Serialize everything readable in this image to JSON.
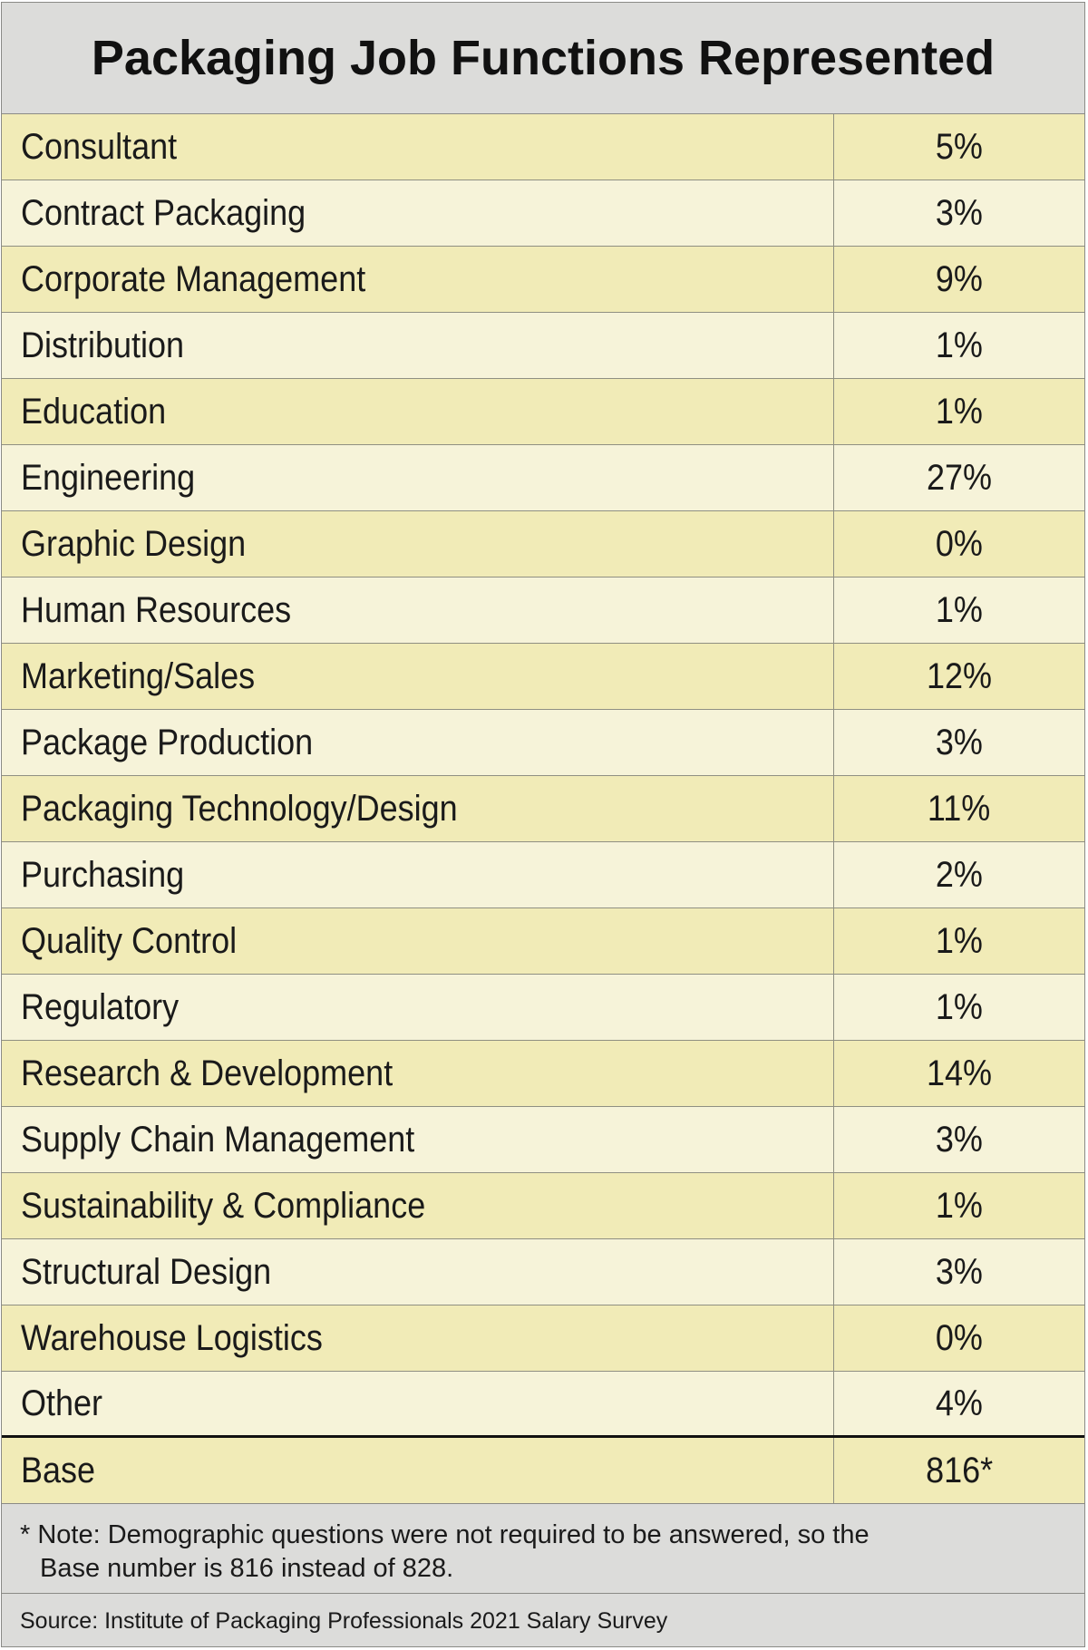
{
  "chart_data": {
    "type": "table",
    "title": "Packaging Job Functions Represented",
    "rows": [
      {
        "label": "Consultant",
        "value": "5%"
      },
      {
        "label": "Contract Packaging",
        "value": "3%"
      },
      {
        "label": "Corporate Management",
        "value": "9%"
      },
      {
        "label": "Distribution",
        "value": "1%"
      },
      {
        "label": "Education",
        "value": "1%"
      },
      {
        "label": "Engineering",
        "value": "27%"
      },
      {
        "label": "Graphic Design",
        "value": "0%"
      },
      {
        "label": "Human Resources",
        "value": "1%"
      },
      {
        "label": "Marketing/Sales",
        "value": "12%"
      },
      {
        "label": "Package Production",
        "value": "3%"
      },
      {
        "label": "Packaging Technology/Design",
        "value": "11%"
      },
      {
        "label": "Purchasing",
        "value": "2%"
      },
      {
        "label": "Quality Control",
        "value": "1%"
      },
      {
        "label": "Regulatory",
        "value": "1%"
      },
      {
        "label": "Research & Development",
        "value": "14%"
      },
      {
        "label": "Supply Chain Management",
        "value": "3%"
      },
      {
        "label": "Sustainability & Compliance",
        "value": "1%"
      },
      {
        "label": "Structural Design",
        "value": "3%"
      },
      {
        "label": "Warehouse Logistics",
        "value": "0%"
      },
      {
        "label": "Other",
        "value": "4%"
      }
    ],
    "base": {
      "label": "Base",
      "value": "816*"
    },
    "note_line1": "* Note: Demographic questions were not required to be answered, so the",
    "note_line2": "Base number is 816 instead of 828.",
    "source": "Source: Institute of Packaging Professionals 2021 Salary Survey"
  },
  "colors": {
    "header_bg": "#dcdcda",
    "row_odd_bg": "#f1ebb7",
    "row_even_bg": "#f6f3d9",
    "grid_line": "#8f8f82",
    "text": "#1a1a1a"
  }
}
